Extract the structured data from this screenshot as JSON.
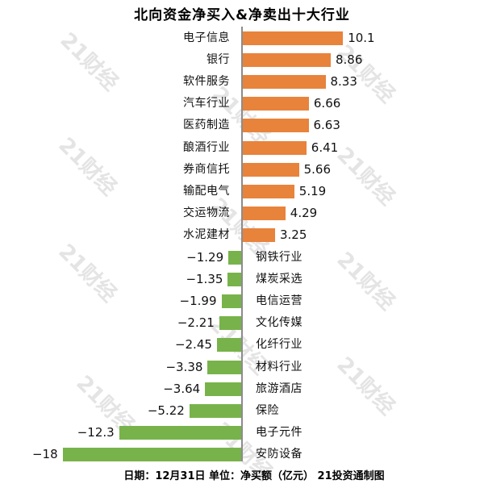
{
  "watermark_text": "21财经",
  "colors": {
    "positive_bar": "#e8833b",
    "negative_bar": "#77b34a",
    "axis_line": "#8c8c8c",
    "watermark": "#e4e4e4",
    "text": "#111111"
  },
  "chart_data": {
    "type": "bar",
    "orientation": "horizontal",
    "title": "北向资金净买入&净卖出十大行业",
    "footnote": "日期：12月31日 单位：净买额（亿元） 21投资通制图",
    "unit": "亿元",
    "legend_position": "none",
    "grid": false,
    "xlim": [
      -18,
      10.1
    ],
    "categories": [
      "电子信息",
      "银行",
      "软件服务",
      "汽车行业",
      "医药制造",
      "酿酒行业",
      "券商信托",
      "输配电气",
      "交运物流",
      "水泥建材",
      "钢铁行业",
      "煤炭采选",
      "电信运营",
      "文化传媒",
      "化纤行业",
      "材料行业",
      "旅游酒店",
      "保险",
      "电子元件",
      "安防设备"
    ],
    "values": [
      10.1,
      8.86,
      8.33,
      6.66,
      6.63,
      6.41,
      5.66,
      5.19,
      4.29,
      3.25,
      -1.29,
      -1.35,
      -1.99,
      -2.21,
      -2.45,
      -3.38,
      -3.64,
      -5.22,
      -12.3,
      -18
    ],
    "value_labels": [
      "10.1",
      "8.86",
      "8.33",
      "6.66",
      "6.63",
      "6.41",
      "5.66",
      "5.19",
      "4.29",
      "3.25",
      "−1.29",
      "−1.35",
      "−1.99",
      "−2.21",
      "−2.45",
      "−3.38",
      "−3.64",
      "−5.22",
      "−12.3",
      "−18"
    ]
  }
}
